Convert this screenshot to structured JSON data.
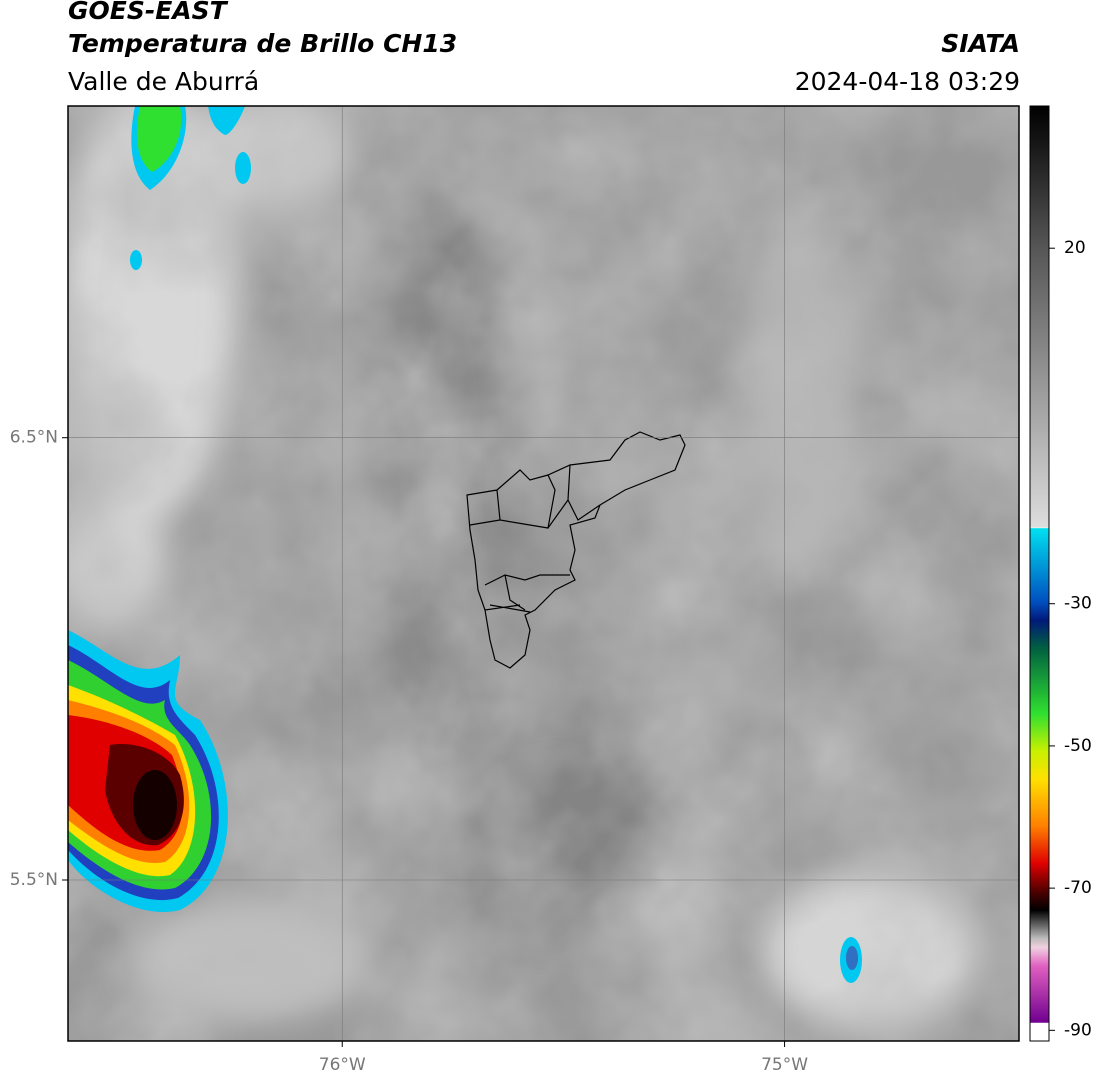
{
  "header": {
    "satellite": "GOES-EAST",
    "product": "Temperatura de Brillo CH13",
    "agency": "SIATA",
    "region": "Valle de Aburrá",
    "timestamp": "2024-04-18 03:29"
  },
  "map": {
    "xlim": [
      -76.62,
      -74.47
    ],
    "ylim": [
      5.136,
      7.25
    ],
    "xticks": [
      {
        "value": -76,
        "label": "76°W"
      },
      {
        "value": -75,
        "label": "75°W"
      }
    ],
    "yticks": [
      {
        "value": 5.5,
        "label": "5.5°N"
      },
      {
        "value": 6.5,
        "label": "6.5°N"
      }
    ]
  },
  "colorbar": {
    "lim": [
      -91.5,
      40
    ],
    "ticks": [
      20,
      -30,
      -50,
      -70,
      -90
    ]
  }
}
